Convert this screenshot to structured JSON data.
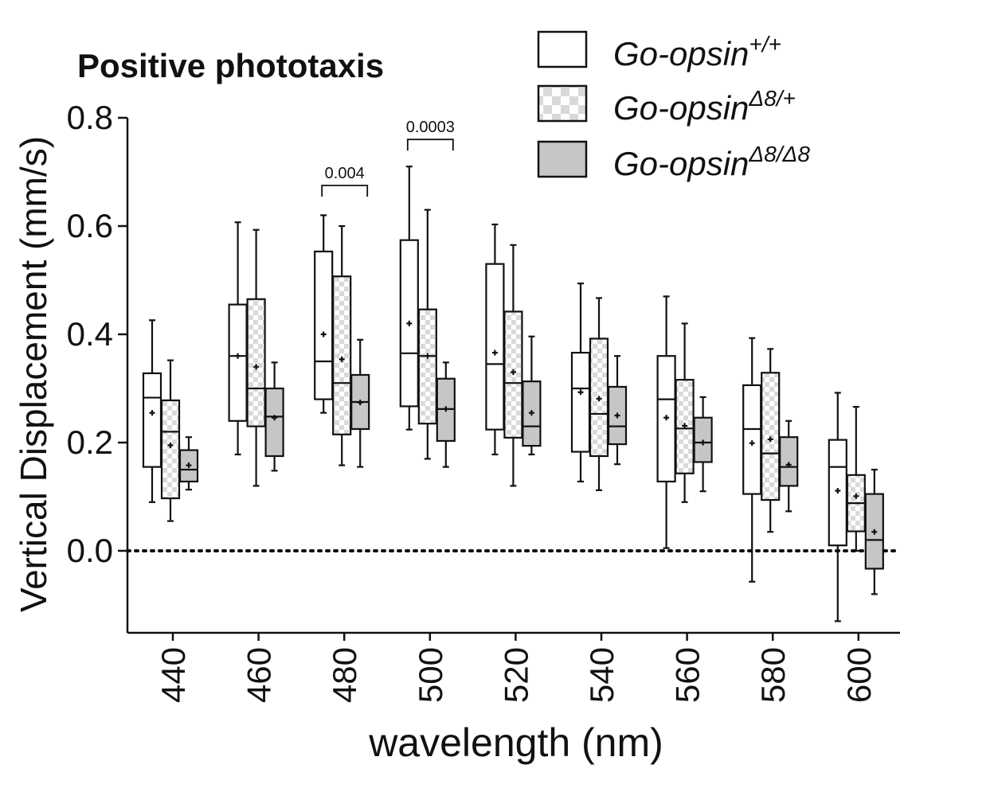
{
  "chart_data": {
    "type": "boxplot",
    "title": "Positive phototaxis",
    "xlabel": "wavelength (nm)",
    "ylabel": "Vertical Displacement (mm/s)",
    "ylim": [
      -0.15,
      0.8
    ],
    "yticks": [
      "0.0",
      "0.2",
      "0.4",
      "0.6",
      "0.8"
    ],
    "ytick_values": [
      0.0,
      0.2,
      0.4,
      0.6,
      0.8
    ],
    "reference_line": 0.0,
    "categories": [
      "440",
      "460",
      "480",
      "500",
      "520",
      "540",
      "560",
      "580",
      "600"
    ],
    "legend": {
      "placement": "top-right",
      "entries": [
        {
          "base": "Go-opsin",
          "sup": "+/+"
        },
        {
          "base": "Go-opsin",
          "sup": "Δ8/+"
        },
        {
          "base": "Go-opsin",
          "sup": "Δ8/Δ8"
        }
      ]
    },
    "series": [
      {
        "style": "white",
        "boxes": [
          {
            "min": 0.09,
            "q1": 0.155,
            "median": 0.283,
            "q3": 0.328,
            "max": 0.426,
            "mean": 0.255
          },
          {
            "min": 0.178,
            "q1": 0.24,
            "median": 0.36,
            "q3": 0.455,
            "max": 0.607,
            "mean": 0.36
          },
          {
            "min": 0.255,
            "q1": 0.28,
            "median": 0.35,
            "q3": 0.553,
            "max": 0.62,
            "mean": 0.4
          },
          {
            "min": 0.224,
            "q1": 0.267,
            "median": 0.365,
            "q3": 0.574,
            "max": 0.71,
            "mean": 0.42
          },
          {
            "min": 0.178,
            "q1": 0.224,
            "median": 0.345,
            "q3": 0.53,
            "max": 0.603,
            "mean": 0.366
          },
          {
            "min": 0.128,
            "q1": 0.183,
            "median": 0.3,
            "q3": 0.366,
            "max": 0.494,
            "mean": 0.293
          },
          {
            "min": 0.005,
            "q1": 0.128,
            "median": 0.28,
            "q3": 0.36,
            "max": 0.47,
            "mean": 0.246
          },
          {
            "min": -0.057,
            "q1": 0.105,
            "median": 0.225,
            "q3": 0.306,
            "max": 0.393,
            "mean": 0.199
          },
          {
            "min": -0.13,
            "q1": 0.01,
            "median": 0.155,
            "q3": 0.205,
            "max": 0.292,
            "mean": 0.111
          }
        ]
      },
      {
        "style": "checker",
        "boxes": [
          {
            "min": 0.055,
            "q1": 0.097,
            "median": 0.22,
            "q3": 0.278,
            "max": 0.352,
            "mean": 0.195
          },
          {
            "min": 0.12,
            "q1": 0.23,
            "median": 0.3,
            "q3": 0.465,
            "max": 0.593,
            "mean": 0.34
          },
          {
            "min": 0.158,
            "q1": 0.215,
            "median": 0.31,
            "q3": 0.507,
            "max": 0.6,
            "mean": 0.354
          },
          {
            "min": 0.17,
            "q1": 0.235,
            "median": 0.36,
            "q3": 0.446,
            "max": 0.63,
            "mean": 0.36
          },
          {
            "min": 0.12,
            "q1": 0.209,
            "median": 0.31,
            "q3": 0.442,
            "max": 0.565,
            "mean": 0.33
          },
          {
            "min": 0.112,
            "q1": 0.175,
            "median": 0.253,
            "q3": 0.392,
            "max": 0.467,
            "mean": 0.281
          },
          {
            "min": 0.09,
            "q1": 0.143,
            "median": 0.226,
            "q3": 0.316,
            "max": 0.42,
            "mean": 0.231
          },
          {
            "min": 0.035,
            "q1": 0.094,
            "median": 0.18,
            "q3": 0.329,
            "max": 0.373,
            "mean": 0.206
          },
          {
            "min": 0.0,
            "q1": 0.036,
            "median": 0.088,
            "q3": 0.14,
            "max": 0.266,
            "mean": 0.101
          }
        ]
      },
      {
        "style": "gray",
        "boxes": [
          {
            "min": 0.113,
            "q1": 0.128,
            "median": 0.15,
            "q3": 0.186,
            "max": 0.21,
            "mean": 0.158
          },
          {
            "min": 0.148,
            "q1": 0.175,
            "median": 0.248,
            "q3": 0.3,
            "max": 0.348,
            "mean": 0.246
          },
          {
            "min": 0.155,
            "q1": 0.225,
            "median": 0.275,
            "q3": 0.325,
            "max": 0.39,
            "mean": 0.274
          },
          {
            "min": 0.155,
            "q1": 0.203,
            "median": 0.262,
            "q3": 0.318,
            "max": 0.348,
            "mean": 0.262
          },
          {
            "min": 0.178,
            "q1": 0.194,
            "median": 0.23,
            "q3": 0.313,
            "max": 0.396,
            "mean": 0.255
          },
          {
            "min": 0.16,
            "q1": 0.197,
            "median": 0.23,
            "q3": 0.303,
            "max": 0.36,
            "mean": 0.25
          },
          {
            "min": 0.11,
            "q1": 0.164,
            "median": 0.2,
            "q3": 0.246,
            "max": 0.284,
            "mean": 0.2
          },
          {
            "min": 0.073,
            "q1": 0.12,
            "median": 0.155,
            "q3": 0.21,
            "max": 0.24,
            "mean": 0.159
          },
          {
            "min": -0.08,
            "q1": -0.033,
            "median": 0.02,
            "q3": 0.105,
            "max": 0.15,
            "mean": 0.035
          }
        ]
      }
    ],
    "annotations": [
      {
        "text": "0.004",
        "category": "480",
        "from_series": 0,
        "to_series": 2,
        "y": 0.675
      },
      {
        "text": "0.0003",
        "category": "500",
        "from_series": 0,
        "to_series": 2,
        "y": 0.76
      }
    ]
  }
}
